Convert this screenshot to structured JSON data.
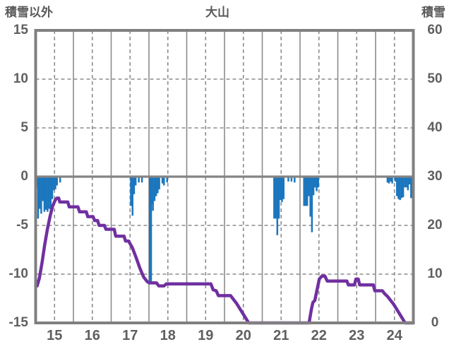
{
  "colors": {
    "bar": "#1B76BE",
    "line": "#7030A0",
    "grid": "#8C8C8C",
    "frame": "#808080",
    "zero_line": "#848484",
    "text": "#595959",
    "background": "#FFFFFF"
  },
  "chart_data": {
    "type": "combo",
    "title": "大山",
    "left_axis": {
      "title": "積雪以外",
      "min": -15,
      "max": 15,
      "ticks": [
        15,
        10,
        5,
        0,
        -5,
        -10,
        -15
      ]
    },
    "right_axis": {
      "title": "積雪",
      "min": 0,
      "max": 60,
      "ticks": [
        60,
        50,
        40,
        30,
        20,
        10,
        0
      ]
    },
    "x_axis": {
      "range": [
        15,
        25
      ],
      "tick_labels": [
        "15",
        "16",
        "17",
        "18",
        "19",
        "20",
        "21",
        "22",
        "23",
        "24"
      ],
      "solid_gridlines": [
        16,
        17,
        18,
        19,
        20,
        21,
        22,
        23,
        24
      ],
      "dashed_gridlines": [
        15.5,
        16.5,
        17.5,
        18.5,
        19.5,
        20.5,
        21.5,
        22.5,
        23.5,
        24.5
      ]
    },
    "horizontal_dashed_gridlines_left": [
      10,
      5,
      -5,
      -10
    ],
    "zero_line_left": 0,
    "bars": {
      "axis": "left",
      "bar_width_days": 0.0417,
      "points": [
        [
          15.0,
          -1.1
        ],
        [
          15.042,
          -4.3
        ],
        [
          15.083,
          -3.3
        ],
        [
          15.125,
          -3.8
        ],
        [
          15.167,
          -2.5
        ],
        [
          15.208,
          -3.6
        ],
        [
          15.25,
          -3.4
        ],
        [
          15.292,
          -3.6
        ],
        [
          15.333,
          -3.3
        ],
        [
          15.375,
          -4.2
        ],
        [
          15.417,
          -2.3
        ],
        [
          15.458,
          -1.4
        ],
        [
          15.5,
          -1.3
        ],
        [
          15.542,
          -0.9
        ],
        [
          15.625,
          -0.6
        ],
        [
          17.5,
          -3.0
        ],
        [
          17.542,
          -4.0
        ],
        [
          17.583,
          -1.8
        ],
        [
          17.625,
          -0.9
        ],
        [
          17.708,
          -0.6
        ],
        [
          17.792,
          -0.6
        ],
        [
          18.0,
          -10.9,
          1.8
        ],
        [
          18.042,
          -2.8
        ],
        [
          18.083,
          -3.5
        ],
        [
          18.125,
          -2.5
        ],
        [
          18.167,
          -2.0
        ],
        [
          18.208,
          -1.7
        ],
        [
          18.25,
          -1.3
        ],
        [
          18.333,
          -0.7
        ],
        [
          18.375,
          -0.9
        ],
        [
          18.458,
          -0.6
        ],
        [
          21.292,
          -4.3
        ],
        [
          21.333,
          -4.3
        ],
        [
          21.375,
          -6.0
        ],
        [
          21.417,
          -4.3
        ],
        [
          21.458,
          -2.4
        ],
        [
          21.5,
          -2.6
        ],
        [
          21.542,
          -2.3
        ],
        [
          21.667,
          -0.5
        ],
        [
          21.75,
          -0.5
        ],
        [
          21.833,
          -0.6
        ],
        [
          22.083,
          -3.0
        ],
        [
          22.125,
          -3.0
        ],
        [
          22.167,
          -3.0
        ],
        [
          22.208,
          -2.0
        ],
        [
          22.25,
          -4.1
        ],
        [
          22.292,
          -5.7
        ],
        [
          22.333,
          -1.9
        ],
        [
          22.375,
          -1.1
        ],
        [
          22.417,
          -1.5
        ],
        [
          22.458,
          -1.1
        ],
        [
          24.292,
          -0.6
        ],
        [
          24.333,
          -0.7
        ],
        [
          24.375,
          -0.5
        ],
        [
          24.417,
          -0.7
        ],
        [
          24.5,
          -0.5
        ],
        [
          24.542,
          -2.0
        ],
        [
          24.583,
          -2.3
        ],
        [
          24.625,
          -2.4
        ],
        [
          24.667,
          -2.2
        ],
        [
          24.708,
          -2.1
        ],
        [
          24.75,
          -1.1
        ],
        [
          24.792,
          -1.1
        ],
        [
          24.833,
          -1.4
        ],
        [
          24.875,
          -0.8
        ],
        [
          24.917,
          -2.2
        ],
        [
          24.958,
          -2.2
        ]
      ]
    },
    "line": {
      "axis": "right",
      "points": [
        [
          15.0,
          7.6
        ],
        [
          15.04,
          7.6
        ],
        [
          15.1,
          9.2
        ],
        [
          15.17,
          12.4
        ],
        [
          15.24,
          16.0
        ],
        [
          15.31,
          19.2
        ],
        [
          15.38,
          21.8
        ],
        [
          15.45,
          24.0
        ],
        [
          15.52,
          25.2
        ],
        [
          15.56,
          25.6
        ],
        [
          15.61,
          25.6
        ],
        [
          15.64,
          24.8
        ],
        [
          15.85,
          24.8
        ],
        [
          15.89,
          23.8
        ],
        [
          16.12,
          23.8
        ],
        [
          16.16,
          22.8
        ],
        [
          16.34,
          22.8
        ],
        [
          16.38,
          21.8
        ],
        [
          16.52,
          21.8
        ],
        [
          16.56,
          21.0
        ],
        [
          16.64,
          21.0
        ],
        [
          16.68,
          20.0
        ],
        [
          16.82,
          20.0
        ],
        [
          16.86,
          19.2
        ],
        [
          17.08,
          19.2
        ],
        [
          17.12,
          17.8
        ],
        [
          17.34,
          17.8
        ],
        [
          17.38,
          16.8
        ],
        [
          17.46,
          16.8
        ],
        [
          17.56,
          15.4
        ],
        [
          17.66,
          13.4
        ],
        [
          17.76,
          11.2
        ],
        [
          17.86,
          9.4
        ],
        [
          17.96,
          8.4
        ],
        [
          18.02,
          8.2
        ],
        [
          18.2,
          8.2
        ],
        [
          18.26,
          7.6
        ],
        [
          18.4,
          7.6
        ],
        [
          18.46,
          8.0
        ],
        [
          19.64,
          8.0
        ],
        [
          19.7,
          6.8
        ],
        [
          19.78,
          6.6
        ],
        [
          19.84,
          5.6
        ],
        [
          20.16,
          5.6
        ],
        [
          20.24,
          4.8
        ],
        [
          20.32,
          4.0
        ],
        [
          20.4,
          3.0
        ],
        [
          20.48,
          2.0
        ],
        [
          20.56,
          1.0
        ],
        [
          20.64,
          0.0
        ],
        [
          22.24,
          0.0
        ],
        [
          22.3,
          2.8
        ],
        [
          22.34,
          4.2
        ],
        [
          22.39,
          4.6
        ],
        [
          22.45,
          6.8
        ],
        [
          22.51,
          9.0
        ],
        [
          22.58,
          9.6
        ],
        [
          22.66,
          9.6
        ],
        [
          22.72,
          8.6
        ],
        [
          23.24,
          8.6
        ],
        [
          23.28,
          7.8
        ],
        [
          23.44,
          7.8
        ],
        [
          23.48,
          9.0
        ],
        [
          23.54,
          9.0
        ],
        [
          23.58,
          7.8
        ],
        [
          23.94,
          7.8
        ],
        [
          23.98,
          6.6
        ],
        [
          24.18,
          6.6
        ],
        [
          24.24,
          6.0
        ],
        [
          24.32,
          5.4
        ],
        [
          24.4,
          4.6
        ],
        [
          24.48,
          3.8
        ],
        [
          24.56,
          2.8
        ],
        [
          24.64,
          1.8
        ],
        [
          24.72,
          0.8
        ],
        [
          24.78,
          0.0
        ],
        [
          25.0,
          0.0
        ]
      ]
    }
  }
}
